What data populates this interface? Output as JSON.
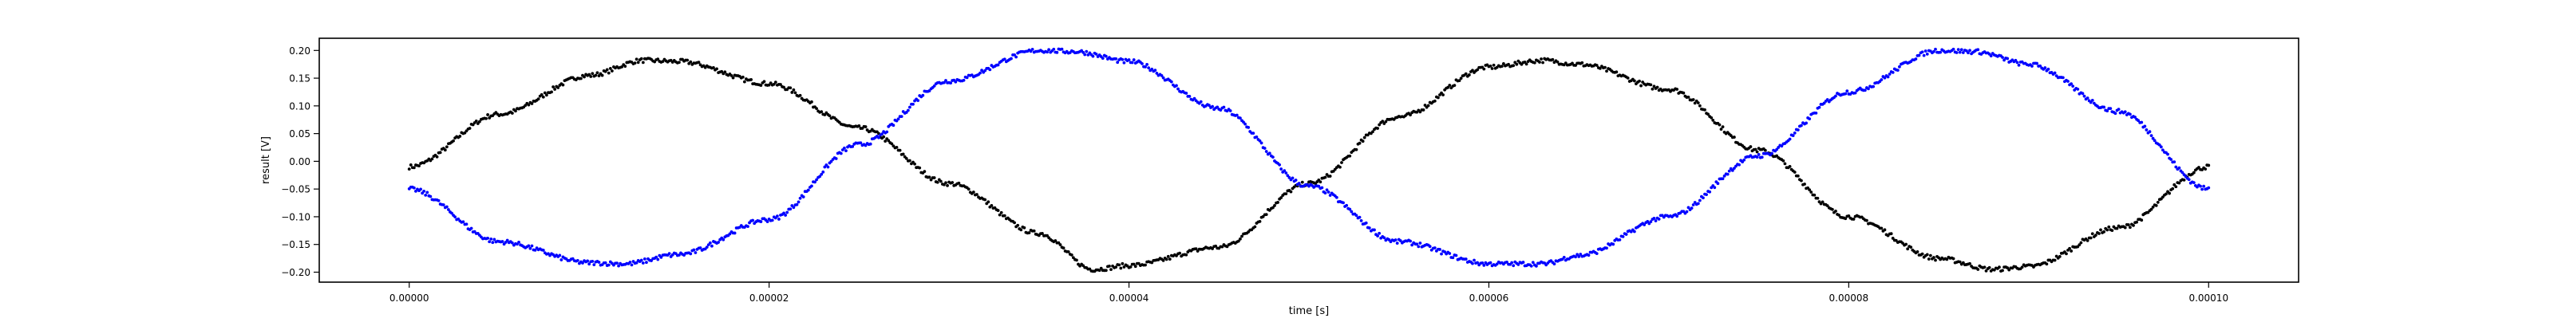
{
  "chart_data": {
    "type": "scatter",
    "title": "",
    "xlabel": "time [s]",
    "ylabel": "result [V]",
    "xlim": [
      -5e-06,
      0.000105
    ],
    "ylim": [
      -0.218,
      0.222
    ],
    "grid": false,
    "legend": "none",
    "x_ticks": [
      0.0,
      2e-05,
      4e-05,
      6e-05,
      8e-05,
      0.0001
    ],
    "x_tick_labels": [
      "0.00000",
      "0.00002",
      "0.00004",
      "0.00006",
      "0.00008",
      "0.00010"
    ],
    "y_ticks": [
      0.2,
      0.15,
      0.1,
      0.05,
      0.0,
      -0.05,
      -0.1,
      -0.15,
      -0.2
    ],
    "y_tick_labels": [
      "0.20",
      "0.15",
      "0.10",
      "0.05",
      "0.00",
      "−0.05",
      "−0.10",
      "−0.15",
      "−0.20"
    ],
    "series": [
      {
        "color": "#000000",
        "marker": "point",
        "points": [
          [
            0.0,
            -0.01
          ],
          [
            5e-06,
            0.085
          ],
          [
            1e-05,
            0.155
          ],
          [
            1.3e-05,
            0.182
          ],
          [
            1.5e-05,
            0.18
          ],
          [
            2e-05,
            0.14
          ],
          [
            2.5e-05,
            0.06
          ],
          [
            3e-05,
            -0.04
          ],
          [
            3.5e-05,
            -0.13
          ],
          [
            3.8e-05,
            -0.195
          ],
          [
            4e-05,
            -0.188
          ],
          [
            4.5e-05,
            -0.155
          ],
          [
            5e-05,
            -0.04
          ],
          [
            5.5e-05,
            0.08
          ],
          [
            6e-05,
            0.17
          ],
          [
            6.3e-05,
            0.182
          ],
          [
            6.5e-05,
            0.175
          ],
          [
            7e-05,
            0.13
          ],
          [
            7.5e-05,
            0.02
          ],
          [
            8e-05,
            -0.1
          ],
          [
            8.5e-05,
            -0.175
          ],
          [
            8.8e-05,
            -0.195
          ],
          [
            9e-05,
            -0.19
          ],
          [
            9.5e-05,
            -0.12
          ],
          [
            0.0001,
            -0.01
          ]
        ]
      },
      {
        "color": "#0000ff",
        "marker": "point",
        "points": [
          [
            0.0,
            -0.05
          ],
          [
            5e-06,
            -0.145
          ],
          [
            1e-05,
            -0.183
          ],
          [
            1.2e-05,
            -0.185
          ],
          [
            1.5e-05,
            -0.168
          ],
          [
            2e-05,
            -0.105
          ],
          [
            2.5e-05,
            0.03
          ],
          [
            3e-05,
            0.145
          ],
          [
            3.5e-05,
            0.2
          ],
          [
            3.7e-05,
            0.198
          ],
          [
            4e-05,
            0.18
          ],
          [
            4.5e-05,
            0.095
          ],
          [
            5e-05,
            -0.045
          ],
          [
            5.5e-05,
            -0.145
          ],
          [
            6e-05,
            -0.185
          ],
          [
            6.3e-05,
            -0.185
          ],
          [
            6.5e-05,
            -0.17
          ],
          [
            7e-05,
            -0.1
          ],
          [
            7.5e-05,
            0.01
          ],
          [
            8e-05,
            0.125
          ],
          [
            8.5e-05,
            0.2
          ],
          [
            8.7e-05,
            0.198
          ],
          [
            9e-05,
            0.175
          ],
          [
            9.5e-05,
            0.09
          ],
          [
            0.0001,
            -0.05
          ]
        ]
      }
    ]
  }
}
